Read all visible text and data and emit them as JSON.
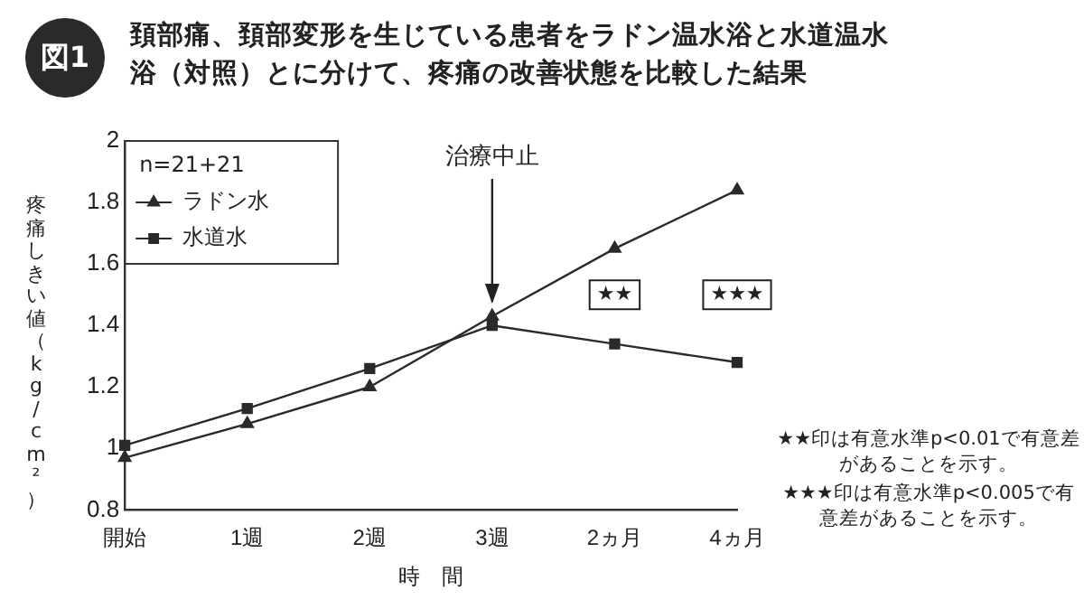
{
  "chart_data": {
    "type": "line",
    "title": "頚部痛、頚部変形を生じている患者をラドン温水浴と水道温水浴（対照）とに分けて、疼痛の改善状態を比較した結果",
    "xlabel": "時　間",
    "ylabel": "疼痛しきい値（kg/cm²）",
    "legend_title": "n=21+21",
    "categories": [
      "開始",
      "1週",
      "2週",
      "3週",
      "2ヵ月",
      "4ヵ月"
    ],
    "series": [
      {
        "name": "ラドン水",
        "color": "#2a2a2a",
        "marker": "triangle",
        "values": [
          0.97,
          1.08,
          1.2,
          1.43,
          1.65,
          1.84
        ]
      },
      {
        "name": "水道水",
        "color": "#2a2a2a",
        "marker": "square",
        "values": [
          1.01,
          1.13,
          1.26,
          1.4,
          1.34,
          1.28
        ]
      }
    ],
    "ylim": [
      0.8,
      2
    ],
    "yticks": [
      0.8,
      1,
      1.2,
      1.4,
      1.6,
      1.8,
      2
    ],
    "grid": false,
    "legend": "top left",
    "line_style": "solid",
    "annotations": [
      "図1",
      {
        "text": "治療中止",
        "x": "3週",
        "y": 1.43
      },
      {
        "text": "★★",
        "x": "2ヵ月",
        "y": 1.5
      },
      {
        "text": "★★★",
        "x": "4ヵ月",
        "y": 1.5
      },
      "★★印は有意水準p<0.01で有意差があることを示す。",
      "★★★印は有意水準p<0.005で有意差があることを示す。"
    ]
  }
}
